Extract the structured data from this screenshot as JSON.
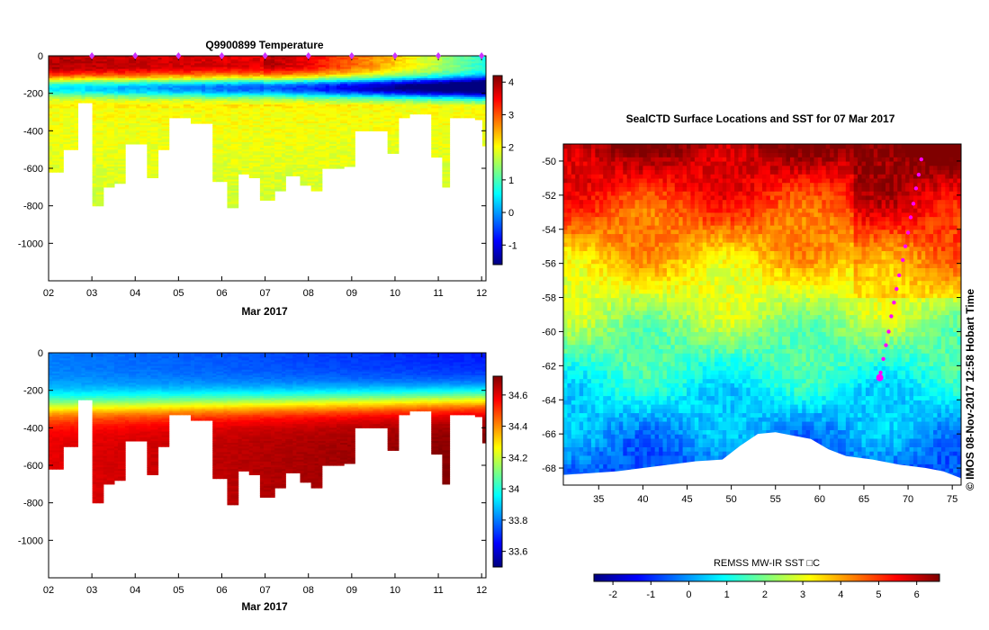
{
  "stamp": "© IMOS 08-Nov-2017 12:58 Hobart Time",
  "charts": {
    "temperature": {
      "title": "Q9900899  Temperature"
    },
    "salinity": {
      "title": ""
    },
    "map": {
      "title": "SealCTD Surface Locations and SST for 07 Mar 2017"
    }
  },
  "chart_data": [
    {
      "type": "heatmap",
      "title": "Q9900899  Temperature",
      "xlabel": "Mar 2017",
      "ylabel": "",
      "x_ticks": [
        "02",
        "03",
        "04",
        "05",
        "06",
        "07",
        "08",
        "09",
        "10",
        "11",
        "12"
      ],
      "y_ticks": [
        0,
        -200,
        -400,
        -600,
        -800,
        -1000
      ],
      "xlim": [
        2,
        12.1
      ],
      "ylim": [
        -1200,
        0
      ],
      "colorbar_ticks": [
        4,
        3,
        2,
        1,
        0,
        -1
      ],
      "colorbar_range": [
        -1.6,
        4.2
      ],
      "colormap": "jet",
      "profile_markers_day": [
        3.0,
        4.0,
        5.0,
        6.0,
        7.0,
        8.0,
        9.0,
        10.0,
        11.0,
        12.0
      ],
      "profile_max_depth": [
        [
          2.0,
          -620
        ],
        [
          2.3,
          -500
        ],
        [
          2.7,
          -250
        ],
        [
          3.0,
          -800
        ],
        [
          3.25,
          -700
        ],
        [
          3.5,
          -680
        ],
        [
          3.75,
          -470
        ],
        [
          4.25,
          -650
        ],
        [
          4.5,
          -500
        ],
        [
          4.75,
          -330
        ],
        [
          5.25,
          -360
        ],
        [
          5.75,
          -670
        ],
        [
          6.1,
          -810
        ],
        [
          6.4,
          -630
        ],
        [
          6.6,
          -650
        ],
        [
          6.9,
          -770
        ],
        [
          7.2,
          -720
        ],
        [
          7.5,
          -640
        ],
        [
          7.8,
          -690
        ],
        [
          8.1,
          -720
        ],
        [
          8.3,
          -600
        ],
        [
          8.6,
          -600
        ],
        [
          8.8,
          -590
        ],
        [
          9.05,
          -400
        ],
        [
          9.6,
          -400
        ],
        [
          9.85,
          -520
        ],
        [
          10.05,
          -330
        ],
        [
          10.3,
          -310
        ],
        [
          10.8,
          -540
        ],
        [
          11.05,
          -700
        ],
        [
          11.3,
          -330
        ],
        [
          11.7,
          -330
        ],
        [
          11.85,
          -340
        ],
        [
          12.0,
          -480
        ]
      ]
    },
    {
      "type": "heatmap",
      "title": "",
      "xlabel": "Mar 2017",
      "ylabel": "",
      "x_ticks": [
        "02",
        "03",
        "04",
        "05",
        "06",
        "07",
        "08",
        "09",
        "10",
        "11",
        "12"
      ],
      "y_ticks": [
        0,
        -200,
        -400,
        -600,
        -800,
        -1000
      ],
      "xlim": [
        2,
        12.1
      ],
      "ylim": [
        -1200,
        0
      ],
      "colorbar_ticks": [
        34.6,
        34.4,
        34.2,
        34,
        33.8,
        33.6
      ],
      "colorbar_range": [
        33.5,
        34.72
      ],
      "colormap": "jet"
    },
    {
      "type": "heatmap",
      "title": "SealCTD Surface Locations and SST for 07 Mar 2017",
      "xlabel": "",
      "ylabel": "",
      "x_ticks": [
        35,
        40,
        45,
        50,
        55,
        60,
        65,
        70,
        75
      ],
      "y_ticks": [
        -50,
        -52,
        -54,
        -56,
        -58,
        -60,
        -62,
        -64,
        -66,
        -68
      ],
      "xlim": [
        31,
        76
      ],
      "ylim": [
        -69,
        -49
      ],
      "colorbar_label": "REMSS MW-IR SST □C",
      "colorbar_ticks": [
        -2,
        -1,
        0,
        1,
        2,
        3,
        4,
        5,
        6
      ],
      "colorbar_range": [
        -2.5,
        6.6
      ],
      "colormap": "jet",
      "track_lon_lat": [
        [
          71.5,
          -49.9
        ],
        [
          71.2,
          -50.8
        ],
        [
          70.9,
          -51.6
        ],
        [
          70.6,
          -52.5
        ],
        [
          70.3,
          -53.3
        ],
        [
          70.0,
          -54.2
        ],
        [
          69.7,
          -55.0
        ],
        [
          69.4,
          -55.8
        ],
        [
          69.0,
          -56.7
        ],
        [
          68.7,
          -57.5
        ],
        [
          68.4,
          -58.3
        ],
        [
          68.1,
          -59.1
        ],
        [
          67.8,
          -60.0
        ],
        [
          67.5,
          -60.8
        ],
        [
          67.2,
          -61.6
        ],
        [
          66.9,
          -62.4
        ]
      ],
      "current_position": [
        66.8,
        -62.7
      ]
    }
  ]
}
